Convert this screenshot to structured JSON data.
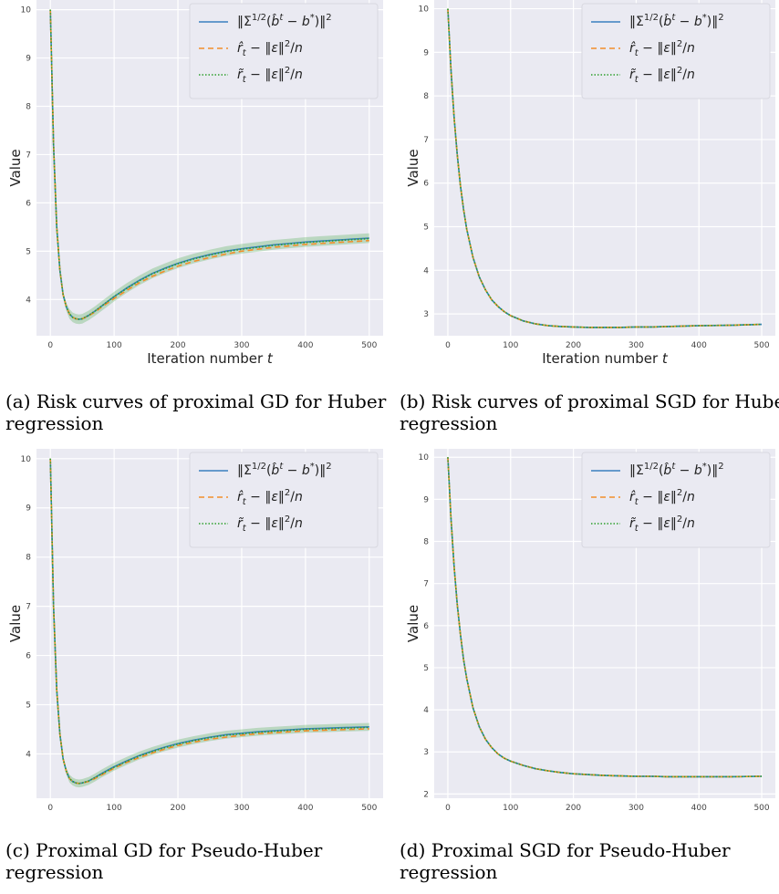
{
  "chart_data": [
    {
      "type": "line",
      "caption": "(a) Risk curves of proximal GD for Huber regression",
      "xlabel": "Iteration number t",
      "ylabel": "Value",
      "xlim": [
        0,
        500
      ],
      "ylim": [
        3.25,
        10.2
      ],
      "xticks": [
        0,
        100,
        200,
        300,
        400,
        500
      ],
      "yticks": [
        4,
        5,
        6,
        7,
        8,
        9,
        10
      ],
      "grid": true,
      "legend_placement": "top-right",
      "x": [
        0,
        5,
        10,
        15,
        20,
        25,
        30,
        35,
        40,
        45,
        50,
        60,
        70,
        80,
        90,
        100,
        120,
        140,
        160,
        180,
        200,
        225,
        250,
        275,
        300,
        325,
        350,
        375,
        400,
        425,
        450,
        475,
        500
      ],
      "band_width": 0.1,
      "series": [
        {
          "name": "‖Σ^{1/2}(b̂^t − b^*)‖²",
          "color": "#3a7fbf",
          "dash": "",
          "values": [
            10.0,
            7.2,
            5.5,
            4.6,
            4.1,
            3.85,
            3.7,
            3.63,
            3.6,
            3.59,
            3.6,
            3.67,
            3.76,
            3.86,
            3.96,
            4.06,
            4.24,
            4.4,
            4.54,
            4.65,
            4.75,
            4.85,
            4.93,
            5.0,
            5.05,
            5.09,
            5.13,
            5.16,
            5.19,
            5.21,
            5.23,
            5.25,
            5.27
          ]
        },
        {
          "name": "r̂_t − ‖ε‖²/n",
          "color": "#f28e2b",
          "dash": "6,4",
          "values": [
            10.0,
            7.2,
            5.5,
            4.6,
            4.1,
            3.85,
            3.7,
            3.63,
            3.6,
            3.59,
            3.6,
            3.66,
            3.74,
            3.84,
            3.93,
            4.02,
            4.19,
            4.35,
            4.48,
            4.59,
            4.69,
            4.79,
            4.87,
            4.94,
            5.0,
            5.04,
            5.08,
            5.11,
            5.14,
            5.16,
            5.18,
            5.2,
            5.22
          ]
        },
        {
          "name": "r̃_t − ‖ε‖²/n",
          "color": "#2ca02c",
          "dash": "1.5,2",
          "values": [
            10.0,
            7.2,
            5.5,
            4.6,
            4.1,
            3.85,
            3.7,
            3.63,
            3.6,
            3.59,
            3.6,
            3.67,
            3.76,
            3.86,
            3.96,
            4.06,
            4.23,
            4.39,
            4.53,
            4.64,
            4.74,
            4.84,
            4.92,
            4.99,
            5.04,
            5.08,
            5.12,
            5.15,
            5.18,
            5.2,
            5.22,
            5.24,
            5.26
          ]
        }
      ]
    },
    {
      "type": "line",
      "caption": "(b) Risk curves of proximal SGD for Huber regression",
      "xlabel": "Iteration number t",
      "ylabel": "Value",
      "xlim": [
        0,
        500
      ],
      "ylim": [
        2.5,
        10.2
      ],
      "xticks": [
        0,
        100,
        200,
        300,
        400,
        500
      ],
      "yticks": [
        3,
        4,
        5,
        6,
        7,
        8,
        9,
        10
      ],
      "grid": true,
      "legend_placement": "top-right",
      "x": [
        0,
        5,
        10,
        15,
        20,
        25,
        30,
        40,
        50,
        60,
        70,
        80,
        90,
        100,
        120,
        140,
        160,
        180,
        200,
        225,
        250,
        275,
        300,
        325,
        350,
        375,
        400,
        450,
        500
      ],
      "band_width": 0.02,
      "series": [
        {
          "name": "‖Σ^{1/2}(b̂^t − b^*)‖²",
          "color": "#3a7fbf",
          "dash": "",
          "values": [
            10.0,
            8.6,
            7.5,
            6.65,
            5.95,
            5.4,
            4.95,
            4.3,
            3.85,
            3.55,
            3.32,
            3.17,
            3.05,
            2.96,
            2.84,
            2.77,
            2.73,
            2.71,
            2.7,
            2.69,
            2.69,
            2.69,
            2.7,
            2.7,
            2.71,
            2.72,
            2.73,
            2.74,
            2.76
          ]
        },
        {
          "name": "r̂_t − ‖ε‖²/n",
          "color": "#f28e2b",
          "dash": "6,4",
          "values": [
            10.0,
            8.6,
            7.5,
            6.65,
            5.95,
            5.4,
            4.95,
            4.3,
            3.85,
            3.55,
            3.32,
            3.17,
            3.05,
            2.96,
            2.84,
            2.77,
            2.73,
            2.71,
            2.7,
            2.69,
            2.69,
            2.69,
            2.7,
            2.7,
            2.71,
            2.72,
            2.73,
            2.74,
            2.76
          ]
        },
        {
          "name": "r̃_t − ‖ε‖²/n",
          "color": "#2ca02c",
          "dash": "1.5,2",
          "values": [
            10.0,
            8.6,
            7.5,
            6.65,
            5.95,
            5.4,
            4.95,
            4.3,
            3.85,
            3.55,
            3.32,
            3.17,
            3.05,
            2.96,
            2.84,
            2.77,
            2.73,
            2.71,
            2.7,
            2.69,
            2.69,
            2.69,
            2.7,
            2.7,
            2.71,
            2.72,
            2.73,
            2.74,
            2.76
          ]
        }
      ]
    },
    {
      "type": "line",
      "caption": "(c) Proximal GD for Pseudo-Huber regression",
      "xlabel": "Iteration number t",
      "ylabel": "Value",
      "xlim": [
        0,
        500
      ],
      "ylim": [
        3.1,
        10.2
      ],
      "xticks": [
        0,
        100,
        200,
        300,
        400,
        500
      ],
      "yticks": [
        4,
        5,
        6,
        7,
        8,
        9,
        10
      ],
      "grid": true,
      "legend_placement": "top-right",
      "x": [
        0,
        5,
        10,
        15,
        20,
        25,
        30,
        35,
        40,
        45,
        50,
        60,
        70,
        80,
        90,
        100,
        120,
        140,
        160,
        180,
        200,
        225,
        250,
        275,
        300,
        325,
        350,
        375,
        400,
        425,
        450,
        475,
        500
      ],
      "band_width": 0.08,
      "series": [
        {
          "name": "‖Σ^{1/2}(b̂^t − b^*)‖²",
          "color": "#3a7fbf",
          "dash": "",
          "values": [
            10.0,
            7.0,
            5.3,
            4.4,
            3.9,
            3.65,
            3.5,
            3.44,
            3.41,
            3.4,
            3.41,
            3.45,
            3.52,
            3.6,
            3.67,
            3.74,
            3.86,
            3.97,
            4.06,
            4.14,
            4.21,
            4.28,
            4.34,
            4.39,
            4.42,
            4.45,
            4.47,
            4.49,
            4.51,
            4.52,
            4.53,
            4.54,
            4.55
          ]
        },
        {
          "name": "r̂_t − ‖ε‖²/n",
          "color": "#f28e2b",
          "dash": "6,4",
          "values": [
            10.0,
            7.0,
            5.3,
            4.4,
            3.9,
            3.65,
            3.5,
            3.44,
            3.41,
            3.4,
            3.41,
            3.44,
            3.5,
            3.57,
            3.64,
            3.71,
            3.83,
            3.93,
            4.02,
            4.1,
            4.17,
            4.24,
            4.3,
            4.34,
            4.38,
            4.41,
            4.43,
            4.45,
            4.47,
            4.48,
            4.49,
            4.5,
            4.51
          ]
        },
        {
          "name": "r̃_t − ‖ε‖²/n",
          "color": "#2ca02c",
          "dash": "1.5,2",
          "values": [
            10.0,
            7.0,
            5.3,
            4.4,
            3.9,
            3.65,
            3.5,
            3.44,
            3.41,
            3.4,
            3.41,
            3.45,
            3.52,
            3.59,
            3.66,
            3.73,
            3.85,
            3.96,
            4.05,
            4.13,
            4.2,
            4.27,
            4.33,
            4.38,
            4.41,
            4.44,
            4.46,
            4.48,
            4.5,
            4.51,
            4.52,
            4.53,
            4.54
          ]
        }
      ]
    },
    {
      "type": "line",
      "caption": "(d) Proximal SGD for Pseudo-Huber regression",
      "xlabel": "Iteration number t",
      "ylabel": "Value",
      "xlim": [
        0,
        500
      ],
      "ylim": [
        1.9,
        10.2
      ],
      "xticks": [
        0,
        100,
        200,
        300,
        400,
        500
      ],
      "yticks": [
        2,
        3,
        4,
        5,
        6,
        7,
        8,
        9,
        10
      ],
      "grid": true,
      "legend_placement": "top-right",
      "x": [
        0,
        5,
        10,
        15,
        20,
        25,
        30,
        40,
        50,
        60,
        70,
        80,
        90,
        100,
        120,
        140,
        160,
        180,
        200,
        225,
        250,
        275,
        300,
        325,
        350,
        375,
        400,
        450,
        500
      ],
      "band_width": 0.02,
      "series": [
        {
          "name": "‖Σ^{1/2}(b̂^t − b^*)‖²",
          "color": "#3a7fbf",
          "dash": "",
          "values": [
            10.0,
            8.55,
            7.4,
            6.5,
            5.8,
            5.2,
            4.75,
            4.05,
            3.6,
            3.3,
            3.1,
            2.95,
            2.85,
            2.78,
            2.68,
            2.6,
            2.55,
            2.51,
            2.48,
            2.46,
            2.44,
            2.43,
            2.42,
            2.42,
            2.41,
            2.41,
            2.41,
            2.41,
            2.42
          ]
        },
        {
          "name": "r̂_t − ‖ε‖²/n",
          "color": "#f28e2b",
          "dash": "6,4",
          "values": [
            10.0,
            8.55,
            7.4,
            6.5,
            5.8,
            5.2,
            4.75,
            4.05,
            3.6,
            3.3,
            3.1,
            2.95,
            2.85,
            2.78,
            2.68,
            2.6,
            2.55,
            2.51,
            2.48,
            2.46,
            2.44,
            2.43,
            2.42,
            2.42,
            2.41,
            2.41,
            2.41,
            2.41,
            2.42
          ]
        },
        {
          "name": "r̃_t − ‖ε‖²/n",
          "color": "#2ca02c",
          "dash": "1.5,2",
          "values": [
            10.0,
            8.55,
            7.4,
            6.5,
            5.8,
            5.2,
            4.75,
            4.05,
            3.6,
            3.3,
            3.1,
            2.95,
            2.85,
            2.78,
            2.68,
            2.6,
            2.55,
            2.51,
            2.48,
            2.46,
            2.44,
            2.43,
            2.42,
            2.42,
            2.41,
            2.41,
            2.41,
            2.41,
            2.42
          ]
        }
      ]
    }
  ]
}
